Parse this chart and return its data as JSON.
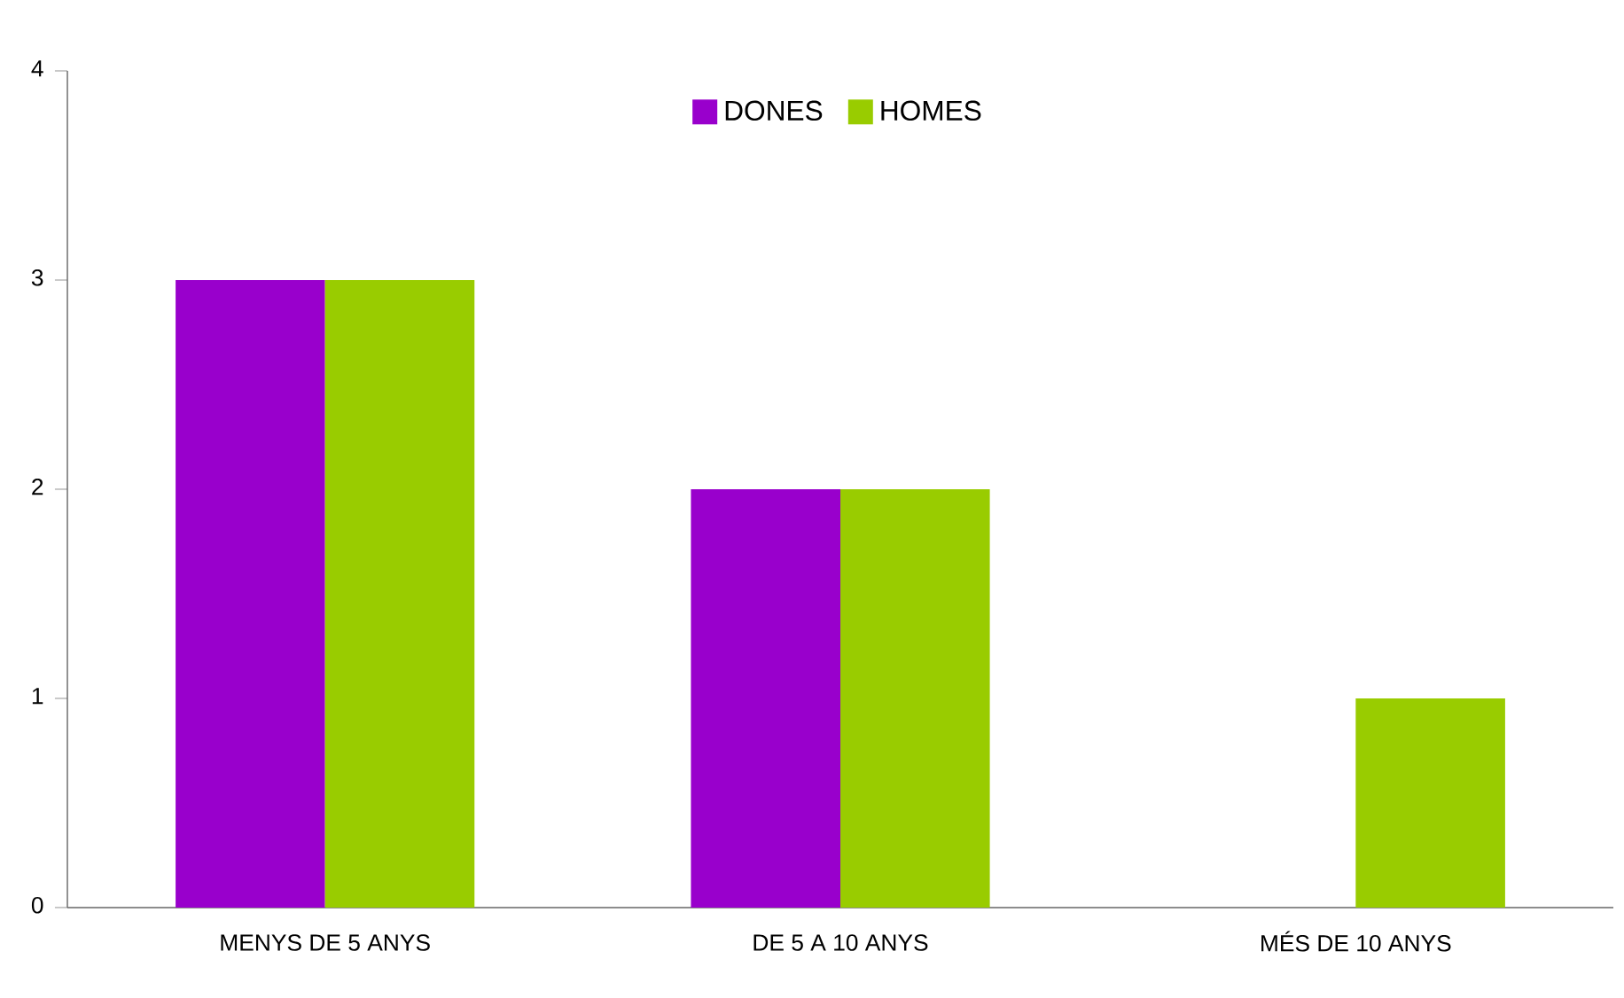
{
  "chart_data": {
    "type": "bar",
    "categories": [
      "MENYS DE 5 ANYS",
      "DE 5 A 10 ANYS",
      "MÉS DE 10 ANYS"
    ],
    "series": [
      {
        "name": "DONES",
        "color": "#9900cc",
        "values": [
          3,
          2,
          0
        ]
      },
      {
        "name": "HOMES",
        "color": "#99cc00",
        "values": [
          3,
          2,
          1
        ]
      }
    ],
    "ylim": [
      0,
      4
    ],
    "yticks": [
      0,
      1,
      2,
      3,
      4
    ],
    "grid": false,
    "legend": "top"
  }
}
